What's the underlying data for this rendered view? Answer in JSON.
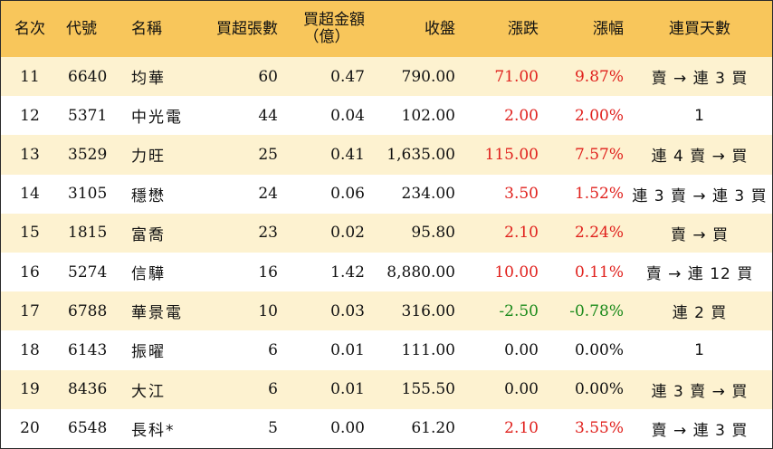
{
  "colors": {
    "header_bg": "#f8c65b",
    "stripe_bg": "#fdf2d0",
    "up": "#e0201c",
    "down": "#1a8a1a",
    "flat": "#111111"
  },
  "headers": {
    "rank": "名次",
    "code": "代號",
    "name": "名稱",
    "net_lots": "買超張數",
    "amount_line1": "買超金額",
    "amount_line2": "（億）",
    "close": "收盤",
    "change": "漲跌",
    "change_pct": "漲幅",
    "streak": "連買天數"
  },
  "rows": [
    {
      "rank": "11",
      "code": "6640",
      "name": "均華",
      "net_lots": "60",
      "amount": "0.47",
      "close": "790.00",
      "change": "71.00",
      "change_pct": "9.87%",
      "streak": "賣 → 連 3 買",
      "dir": "up"
    },
    {
      "rank": "12",
      "code": "5371",
      "name": "中光電",
      "net_lots": "44",
      "amount": "0.04",
      "close": "102.00",
      "change": "2.00",
      "change_pct": "2.00%",
      "streak": "1",
      "dir": "up"
    },
    {
      "rank": "13",
      "code": "3529",
      "name": "力旺",
      "net_lots": "25",
      "amount": "0.41",
      "close": "1,635.00",
      "change": "115.00",
      "change_pct": "7.57%",
      "streak": "連 4 賣 → 買",
      "dir": "up"
    },
    {
      "rank": "14",
      "code": "3105",
      "name": "穩懋",
      "net_lots": "24",
      "amount": "0.06",
      "close": "234.00",
      "change": "3.50",
      "change_pct": "1.52%",
      "streak": "連 3 賣 → 連 3 買",
      "dir": "up"
    },
    {
      "rank": "15",
      "code": "1815",
      "name": "富喬",
      "net_lots": "23",
      "amount": "0.02",
      "close": "95.80",
      "change": "2.10",
      "change_pct": "2.24%",
      "streak": "賣 → 買",
      "dir": "up"
    },
    {
      "rank": "16",
      "code": "5274",
      "name": "信驊",
      "net_lots": "16",
      "amount": "1.42",
      "close": "8,880.00",
      "change": "10.00",
      "change_pct": "0.11%",
      "streak": "賣 → 連 12 買",
      "dir": "up"
    },
    {
      "rank": "17",
      "code": "6788",
      "name": "華景電",
      "net_lots": "10",
      "amount": "0.03",
      "close": "316.00",
      "change": "-2.50",
      "change_pct": "-0.78%",
      "streak": "連 2 買",
      "dir": "down"
    },
    {
      "rank": "18",
      "code": "6143",
      "name": "振曜",
      "net_lots": "6",
      "amount": "0.01",
      "close": "111.00",
      "change": "0.00",
      "change_pct": "0.00%",
      "streak": "1",
      "dir": "flat"
    },
    {
      "rank": "19",
      "code": "8436",
      "name": "大江",
      "net_lots": "6",
      "amount": "0.01",
      "close": "155.50",
      "change": "0.00",
      "change_pct": "0.00%",
      "streak": "連 3 賣 → 買",
      "dir": "flat"
    },
    {
      "rank": "20",
      "code": "6548",
      "name": "長科*",
      "net_lots": "5",
      "amount": "0.00",
      "close": "61.20",
      "change": "2.10",
      "change_pct": "3.55%",
      "streak": "賣 → 連 3 買",
      "dir": "up"
    }
  ]
}
